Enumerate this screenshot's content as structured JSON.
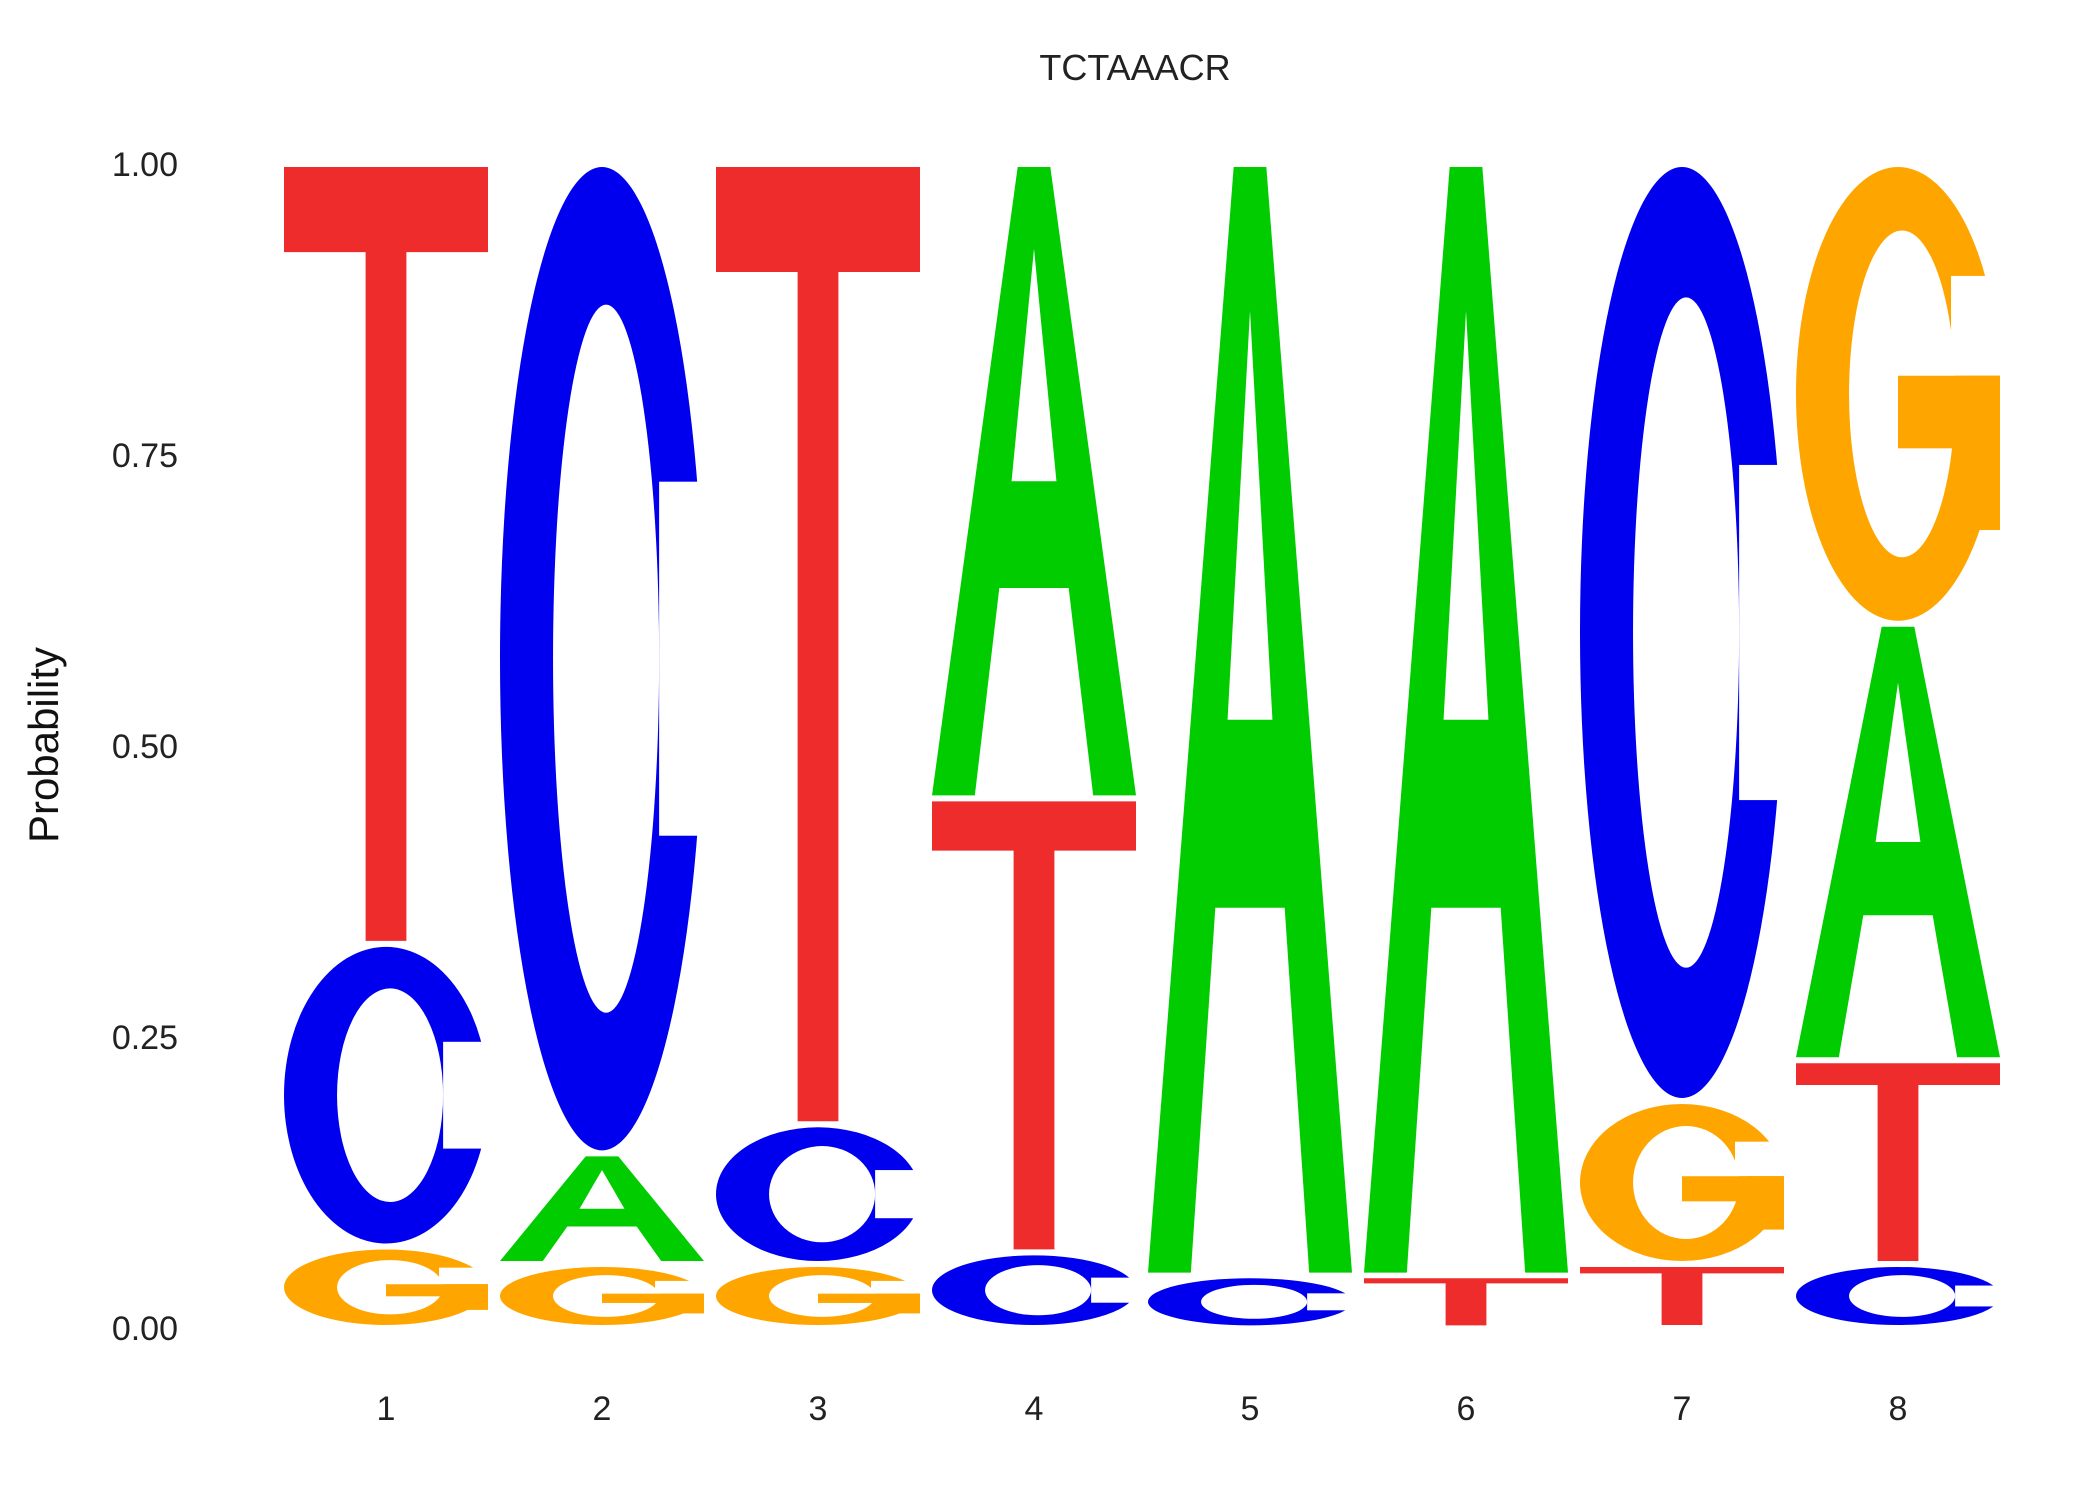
{
  "chart_data": {
    "type": "sequence-logo",
    "title": "TCTAAACR",
    "ylabel": "Probability",
    "xlabel": "",
    "ylim": [
      0,
      1
    ],
    "yticks": [
      "0.00",
      "0.25",
      "0.50",
      "0.75",
      "1.00"
    ],
    "grid": false,
    "positions": [
      "1",
      "2",
      "3",
      "4",
      "5",
      "6",
      "7",
      "8"
    ],
    "colors": {
      "A": "#00CC00",
      "C": "#0000EE",
      "G": "#FFA500",
      "T": "#EE2C2C"
    },
    "stacks": [
      [
        {
          "letter": "G",
          "p": 0.07
        },
        {
          "letter": "C",
          "p": 0.26
        },
        {
          "letter": "T",
          "p": 0.67
        }
      ],
      [
        {
          "letter": "G",
          "p": 0.055
        },
        {
          "letter": "A",
          "p": 0.095
        },
        {
          "letter": "C",
          "p": 0.85
        }
      ],
      [
        {
          "letter": "G",
          "p": 0.055
        },
        {
          "letter": "C",
          "p": 0.12
        },
        {
          "letter": "T",
          "p": 0.825
        }
      ],
      [
        {
          "letter": "C",
          "p": 0.065
        },
        {
          "letter": "T",
          "p": 0.39
        },
        {
          "letter": "A",
          "p": 0.545
        }
      ],
      [
        {
          "letter": "C",
          "p": 0.045
        },
        {
          "letter": "A",
          "p": 0.955
        }
      ],
      [
        {
          "letter": "T",
          "p": 0.045
        },
        {
          "letter": "A",
          "p": 0.955
        }
      ],
      [
        {
          "letter": "T",
          "p": 0.055
        },
        {
          "letter": "G",
          "p": 0.14
        },
        {
          "letter": "C",
          "p": 0.805
        }
      ],
      [
        {
          "letter": "C",
          "p": 0.055
        },
        {
          "letter": "T",
          "p": 0.175
        },
        {
          "letter": "A",
          "p": 0.375
        },
        {
          "letter": "G",
          "p": 0.395
        }
      ]
    ]
  }
}
